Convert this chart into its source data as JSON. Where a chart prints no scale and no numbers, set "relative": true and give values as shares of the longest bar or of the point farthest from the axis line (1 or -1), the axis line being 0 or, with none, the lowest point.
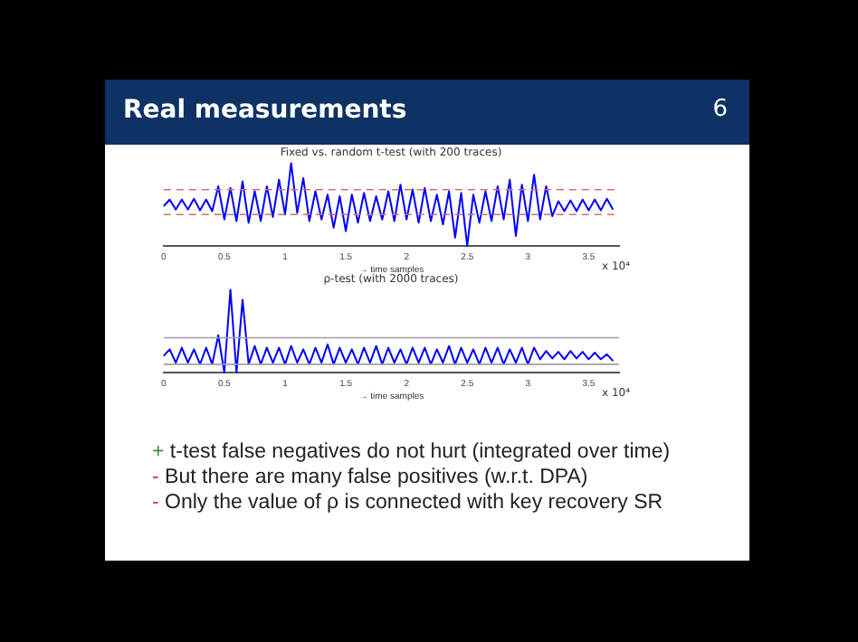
{
  "chart_data": [
    {
      "type": "line",
      "title": "Fixed vs. random t-test (with 200 traces)",
      "xlabel": "→ time samples",
      "relative": true,
      "marker": "none",
      "line_style": "solid",
      "grid": false,
      "legend": false,
      "xlim": [
        0,
        3.75
      ],
      "xticks": [
        0,
        0.5,
        1,
        1.5,
        2,
        2.5,
        3,
        3.5
      ],
      "annotations": [
        "x 10⁴"
      ],
      "ref_lines": [
        {
          "axis": "y",
          "value": 0.68,
          "color": "#d07070",
          "line_style": "dashed"
        },
        {
          "axis": "y",
          "value": 0.38,
          "color": "#d07070",
          "line_style": "dashed"
        }
      ],
      "x": [
        0,
        0.05,
        0.1,
        0.15,
        0.2,
        0.25,
        0.3,
        0.35,
        0.4,
        0.45,
        0.5,
        0.55,
        0.6,
        0.65,
        0.7,
        0.75,
        0.8,
        0.85,
        0.9,
        0.95,
        1,
        1.05,
        1.1,
        1.15,
        1.2,
        1.25,
        1.3,
        1.35,
        1.4,
        1.45,
        1.5,
        1.55,
        1.6,
        1.65,
        1.7,
        1.75,
        1.8,
        1.85,
        1.9,
        1.95,
        2,
        2.05,
        2.1,
        2.15,
        2.2,
        2.25,
        2.3,
        2.35,
        2.4,
        2.45,
        2.5,
        2.55,
        2.6,
        2.65,
        2.7,
        2.75,
        2.8,
        2.85,
        2.9,
        2.95,
        3,
        3.05,
        3.1,
        3.15,
        3.2,
        3.25,
        3.3,
        3.35,
        3.4,
        3.45,
        3.5,
        3.55,
        3.6,
        3.65,
        3.7
      ],
      "series": [
        {
          "color": "#0000ff",
          "values": [
            0.48,
            0.56,
            0.44,
            0.56,
            0.44,
            0.57,
            0.43,
            0.56,
            0.42,
            0.72,
            0.32,
            0.7,
            0.3,
            0.78,
            0.28,
            0.66,
            0.3,
            0.72,
            0.35,
            0.8,
            0.38,
            1,
            0.4,
            0.82,
            0.3,
            0.66,
            0.32,
            0.62,
            0.22,
            0.6,
            0.18,
            0.62,
            0.28,
            0.64,
            0.3,
            0.6,
            0.32,
            0.66,
            0.3,
            0.74,
            0.32,
            0.68,
            0.28,
            0.7,
            0.3,
            0.62,
            0.26,
            0.66,
            0.1,
            0.64,
            0,
            0.62,
            0.28,
            0.66,
            0.3,
            0.72,
            0.32,
            0.8,
            0.12,
            0.74,
            0.3,
            0.86,
            0.32,
            0.72,
            0.36,
            0.54,
            0.42,
            0.55,
            0.42,
            0.56,
            0.43,
            0.56,
            0.43,
            0.57,
            0.44
          ]
        }
      ]
    },
    {
      "type": "line",
      "title": "ρ-test (with 2000 traces)",
      "xlabel": "→ time samples",
      "relative": true,
      "marker": "none",
      "line_style": "solid",
      "grid": false,
      "legend": false,
      "xlim": [
        0,
        3.75
      ],
      "xticks": [
        0,
        0.5,
        1,
        1.5,
        2,
        2.5,
        3,
        3.5
      ],
      "annotations": [
        "x 10⁴"
      ],
      "ref_lines": [
        {
          "axis": "y",
          "value": 0.42,
          "color": "#a0a0a0",
          "line_style": "solid"
        },
        {
          "axis": "y",
          "value": 0.1,
          "color": "#a0a0a0",
          "line_style": "solid"
        }
      ],
      "x": [
        0,
        0.05,
        0.1,
        0.15,
        0.2,
        0.25,
        0.3,
        0.35,
        0.4,
        0.45,
        0.5,
        0.55,
        0.6,
        0.65,
        0.7,
        0.75,
        0.8,
        0.85,
        0.9,
        0.95,
        1,
        1.05,
        1.1,
        1.15,
        1.2,
        1.25,
        1.3,
        1.35,
        1.4,
        1.45,
        1.5,
        1.55,
        1.6,
        1.65,
        1.7,
        1.75,
        1.8,
        1.85,
        1.9,
        1.95,
        2,
        2.05,
        2.1,
        2.15,
        2.2,
        2.25,
        2.3,
        2.35,
        2.4,
        2.45,
        2.5,
        2.55,
        2.6,
        2.65,
        2.7,
        2.75,
        2.8,
        2.85,
        2.9,
        2.95,
        3,
        3.05,
        3.1,
        3.15,
        3.2,
        3.25,
        3.3,
        3.35,
        3.4,
        3.45,
        3.5,
        3.55,
        3.6,
        3.65,
        3.7
      ],
      "series": [
        {
          "color": "#0000ff",
          "values": [
            0.2,
            0.28,
            0.12,
            0.3,
            0.12,
            0.28,
            0.1,
            0.3,
            0.1,
            0.45,
            0,
            1,
            0,
            0.88,
            0.1,
            0.32,
            0.1,
            0.3,
            0.12,
            0.3,
            0.1,
            0.32,
            0.12,
            0.28,
            0.1,
            0.3,
            0.12,
            0.34,
            0.1,
            0.3,
            0.12,
            0.28,
            0.1,
            0.3,
            0.12,
            0.32,
            0.1,
            0.3,
            0.12,
            0.28,
            0.1,
            0.3,
            0.12,
            0.3,
            0.1,
            0.28,
            0.12,
            0.32,
            0.1,
            0.3,
            0.12,
            0.28,
            0.1,
            0.3,
            0.12,
            0.3,
            0.1,
            0.28,
            0.12,
            0.3,
            0.1,
            0.3,
            0.16,
            0.26,
            0.17,
            0.25,
            0.16,
            0.26,
            0.17,
            0.25,
            0.16,
            0.24,
            0.16,
            0.22,
            0.14
          ]
        }
      ]
    },
    {
      "type": "other",
      "title": "Real measurements",
      "annotations": [
        "6",
        "+ t-test false negatives do not hurt (integrated over time)",
        "- But there are many false positives (w.r.t. DPA)",
        "- Only the value of ρ is connected with key recovery SR"
      ]
    }
  ]
}
